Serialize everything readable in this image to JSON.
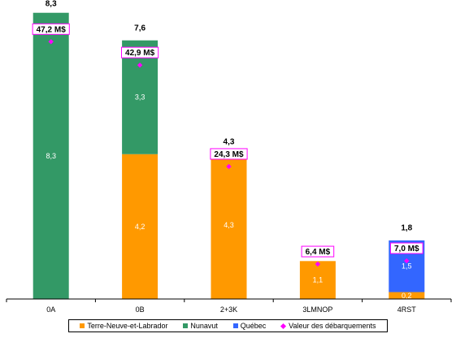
{
  "chart_data": {
    "type": "bar",
    "stacked": true,
    "categories": [
      "0A",
      "0B",
      "2+3K",
      "3LMNOP",
      "4RST"
    ],
    "series": [
      {
        "name": "Terre-Neuve-et-Labrador",
        "color": "#FF9900",
        "values": [
          0,
          4.2,
          4.3,
          1.1,
          0.2
        ],
        "labels": [
          "",
          "4,2",
          "4,3",
          "1,1",
          "0,2"
        ]
      },
      {
        "name": "Nunavut",
        "color": "#339966",
        "values": [
          8.3,
          3.3,
          0,
          0,
          0
        ],
        "labels": [
          "8,3",
          "3,3",
          "",
          "",
          ""
        ]
      },
      {
        "name": "Québec",
        "color": "#3366FF",
        "values": [
          0,
          0,
          0,
          0,
          1.5
        ],
        "labels": [
          "",
          "",
          "",
          "",
          "1,5"
        ]
      }
    ],
    "totals": [
      8.3,
      7.6,
      4.3,
      1.1,
      1.8
    ],
    "total_labels": [
      "8,3",
      "7,6",
      "4,3",
      "1,1",
      "1,8"
    ],
    "landed_value": {
      "name": "Valeur des débarquements",
      "color": "#FF00FF",
      "values": [
        47.2,
        42.9,
        24.3,
        6.4,
        7.0
      ],
      "labels": [
        "47,2 M$",
        "42,9 M$",
        "24,3 M$",
        "6,4 M$",
        "7,0 M$"
      ]
    },
    "ylim": [
      0,
      8.6
    ],
    "value_ylim": [
      0,
      54.4
    ],
    "grid": false,
    "legend_position": "bottom"
  }
}
